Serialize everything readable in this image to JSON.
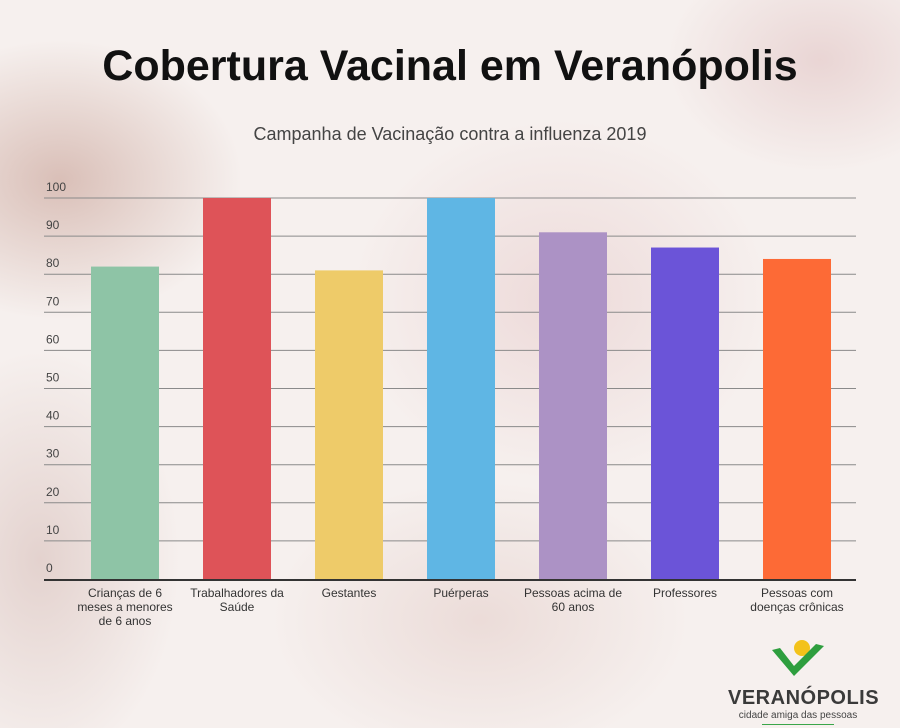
{
  "chart_data": {
    "type": "bar",
    "title": "Cobertura Vacinal em Veranópolis",
    "subtitle": "Campanha de Vacinação contra a influenza 2019",
    "categories": [
      [
        "Crianças de 6",
        "meses a menores",
        "de 6 anos"
      ],
      [
        "Trabalhadores da",
        "Saúde"
      ],
      [
        "Gestantes"
      ],
      [
        "Puérperas"
      ],
      [
        "Pessoas acima de",
        "60 anos"
      ],
      [
        "Professores"
      ],
      [
        "Pessoas com",
        "doenças crônicas"
      ]
    ],
    "values": [
      82,
      100,
      81,
      100,
      91,
      87,
      84
    ],
    "colors": [
      "#8ec4a6",
      "#de5358",
      "#eecb69",
      "#5fb6e4",
      "#ac92c5",
      "#6b54d8",
      "#fd6a36"
    ],
    "ylim": [
      0,
      100
    ],
    "yticks": [
      0,
      10,
      20,
      30,
      40,
      50,
      60,
      70,
      80,
      90,
      100
    ],
    "grid": true,
    "xlabel": "",
    "ylabel": ""
  },
  "logo": {
    "name": "VERANÓPOLIS",
    "tagline": "cidade amiga das pessoas"
  }
}
